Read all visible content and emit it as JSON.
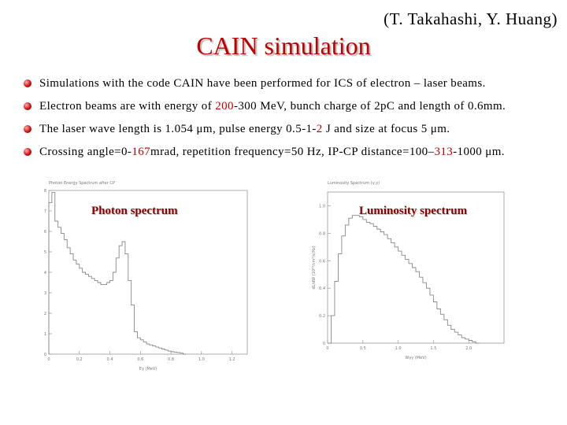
{
  "header": {
    "authors": "(T. Takahashi, Y. Huang)",
    "title": "CAIN simulation"
  },
  "bullets": [
    {
      "parts": [
        {
          "t": "Simulations with the code CAIN have been performed for ICS of electron – laser beams."
        }
      ]
    },
    {
      "parts": [
        {
          "t": "Electron beams are with energy of "
        },
        {
          "t": "200",
          "hl": true
        },
        {
          "t": "-300 MeV, bunch charge of 2pC and length of 0.6mm."
        }
      ]
    },
    {
      "parts": [
        {
          "t": "The laser wave length is 1.054 μm, pulse energy 0.5-1-"
        },
        {
          "t": "2",
          "hl": true
        },
        {
          "t": " J and size at focus 5 μm."
        }
      ]
    },
    {
      "parts": [
        {
          "t": "Crossing angle=0-"
        },
        {
          "t": "167",
          "hl": true
        },
        {
          "t": "mrad, repetition frequency=50 Hz, IP-CP distance=100–"
        },
        {
          "t": "313",
          "hl": true
        },
        {
          "t": "-1000 μm."
        }
      ]
    }
  ],
  "colors": {
    "title": "#c00000",
    "highlight": "#c00000",
    "plot_label": "#8b0000"
  },
  "plots": {
    "photon": {
      "label": "Photon spectrum",
      "header": "Photon Energy Spectrum after CP",
      "xlabel": "Eγ (MeV)",
      "xticks": [
        "0",
        "0.2",
        "0.4",
        "0.6",
        "0.8",
        "1.0",
        "1.2"
      ],
      "yticks": [
        "8",
        "7",
        "6",
        "5",
        "4",
        "3",
        "2",
        "1",
        "0"
      ],
      "xlim": [
        0,
        1.3
      ],
      "ylim": [
        0,
        8
      ],
      "hist": [
        [
          0.0,
          7.4
        ],
        [
          0.02,
          7.9
        ],
        [
          0.04,
          6.5
        ],
        [
          0.06,
          6.2
        ],
        [
          0.08,
          5.9
        ],
        [
          0.1,
          5.6
        ],
        [
          0.12,
          5.2
        ],
        [
          0.14,
          4.9
        ],
        [
          0.16,
          4.6
        ],
        [
          0.18,
          4.4
        ],
        [
          0.2,
          4.2
        ],
        [
          0.22,
          4.0
        ],
        [
          0.24,
          3.9
        ],
        [
          0.26,
          3.8
        ],
        [
          0.28,
          3.7
        ],
        [
          0.3,
          3.6
        ],
        [
          0.32,
          3.5
        ],
        [
          0.34,
          3.4
        ],
        [
          0.36,
          3.4
        ],
        [
          0.38,
          3.5
        ],
        [
          0.4,
          3.6
        ],
        [
          0.42,
          4.0
        ],
        [
          0.44,
          4.7
        ],
        [
          0.46,
          5.3
        ],
        [
          0.48,
          5.5
        ],
        [
          0.5,
          4.9
        ],
        [
          0.52,
          3.6
        ],
        [
          0.54,
          2.4
        ],
        [
          0.56,
          1.1
        ],
        [
          0.58,
          0.8
        ],
        [
          0.6,
          0.7
        ],
        [
          0.62,
          0.6
        ],
        [
          0.64,
          0.5
        ],
        [
          0.66,
          0.45
        ],
        [
          0.68,
          0.4
        ],
        [
          0.7,
          0.35
        ],
        [
          0.72,
          0.3
        ],
        [
          0.74,
          0.25
        ],
        [
          0.76,
          0.2
        ],
        [
          0.78,
          0.15
        ],
        [
          0.8,
          0.12
        ],
        [
          0.82,
          0.1
        ],
        [
          0.84,
          0.08
        ],
        [
          0.86,
          0.05
        ],
        [
          0.88,
          0.0
        ]
      ]
    },
    "luminosity": {
      "label": "Luminosity  spectrum",
      "header": "Luminosity Spectrum (γ,γ)",
      "xlabel": "Wγγ (MeV)",
      "ylabel": "dL/dW (10²⁴/cm²/s/Hz)",
      "xticks": [
        "0",
        "0.5",
        "1.0",
        "1.5",
        "2.0"
      ],
      "yticks": [
        "1.0",
        "0.8",
        "0.6",
        "0.4",
        "0.2",
        "0"
      ],
      "xlim": [
        0,
        2.5
      ],
      "ylim": [
        0,
        1.1
      ],
      "hist": [
        [
          0.0,
          0.0
        ],
        [
          0.05,
          0.2
        ],
        [
          0.1,
          0.45
        ],
        [
          0.15,
          0.65
        ],
        [
          0.2,
          0.78
        ],
        [
          0.25,
          0.86
        ],
        [
          0.3,
          0.91
        ],
        [
          0.35,
          0.93
        ],
        [
          0.4,
          0.93
        ],
        [
          0.45,
          0.92
        ],
        [
          0.5,
          0.9
        ],
        [
          0.55,
          0.88
        ],
        [
          0.6,
          0.87
        ],
        [
          0.65,
          0.85
        ],
        [
          0.7,
          0.83
        ],
        [
          0.75,
          0.81
        ],
        [
          0.8,
          0.79
        ],
        [
          0.85,
          0.76
        ],
        [
          0.9,
          0.73
        ],
        [
          0.95,
          0.7
        ],
        [
          1.0,
          0.67
        ],
        [
          1.05,
          0.64
        ],
        [
          1.1,
          0.61
        ],
        [
          1.15,
          0.58
        ],
        [
          1.2,
          0.55
        ],
        [
          1.25,
          0.52
        ],
        [
          1.3,
          0.48
        ],
        [
          1.35,
          0.44
        ],
        [
          1.4,
          0.4
        ],
        [
          1.45,
          0.35
        ],
        [
          1.5,
          0.3
        ],
        [
          1.55,
          0.25
        ],
        [
          1.6,
          0.21
        ],
        [
          1.65,
          0.17
        ],
        [
          1.7,
          0.13
        ],
        [
          1.75,
          0.1
        ],
        [
          1.8,
          0.08
        ],
        [
          1.85,
          0.06
        ],
        [
          1.9,
          0.04
        ],
        [
          1.95,
          0.03
        ],
        [
          2.0,
          0.02
        ],
        [
          2.05,
          0.01
        ],
        [
          2.1,
          0.0
        ]
      ]
    }
  }
}
